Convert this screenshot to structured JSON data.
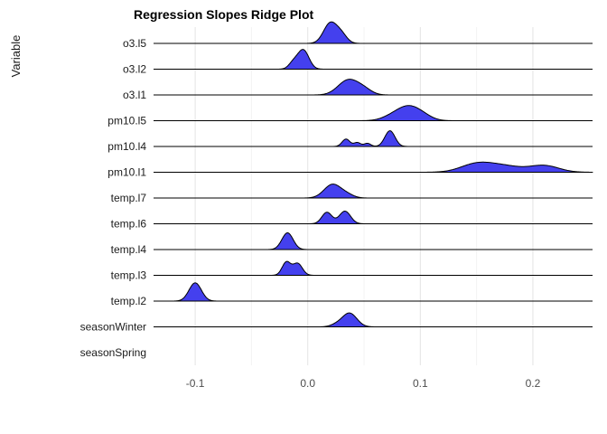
{
  "title": "Regression Slopes Ridge Plot",
  "y_axis_title": "Variable",
  "chart_data": {
    "type": "area",
    "subtype": "ridgeline-density",
    "title": "Regression Slopes Ridge Plot",
    "xlabel": "",
    "ylabel": "Variable",
    "xlim": [
      -0.137,
      0.253
    ],
    "x_ticks": [
      -0.1,
      0.0,
      0.1,
      0.2
    ],
    "x_tick_labels": [
      "-0.1",
      "0.0",
      "0.1",
      "0.2"
    ],
    "x_minor_ticks": [
      -0.05,
      0.05,
      0.15
    ],
    "grid": "vertical-only",
    "legend": "none",
    "fill_color": "#4440EE",
    "stroke_color": "#000000",
    "series": [
      {
        "name": "o3.l5",
        "has_baseline": true,
        "rel_height": 0.85,
        "components": [
          {
            "mean": 0.02,
            "sd": 0.006,
            "weight": 0.75
          },
          {
            "mean": 0.03,
            "sd": 0.005,
            "weight": 0.25
          }
        ]
      },
      {
        "name": "o3.l2",
        "has_baseline": true,
        "rel_height": 0.78,
        "components": [
          {
            "mean": -0.004,
            "sd": 0.005,
            "weight": 0.8
          },
          {
            "mean": -0.013,
            "sd": 0.004,
            "weight": 0.2
          }
        ]
      },
      {
        "name": "o3.l1",
        "has_baseline": true,
        "rel_height": 0.62,
        "components": [
          {
            "mean": 0.036,
            "sd": 0.009,
            "weight": 0.8
          },
          {
            "mean": 0.05,
            "sd": 0.007,
            "weight": 0.2
          }
        ]
      },
      {
        "name": "pm10.l5",
        "has_baseline": true,
        "rel_height": 0.6,
        "components": [
          {
            "mean": 0.088,
            "sd": 0.009,
            "weight": 0.5
          },
          {
            "mean": 0.075,
            "sd": 0.009,
            "weight": 0.2
          },
          {
            "mean": 0.1,
            "sd": 0.009,
            "weight": 0.3
          }
        ]
      },
      {
        "name": "pm10.l4",
        "has_baseline": true,
        "rel_height": 0.62,
        "components": [
          {
            "mean": 0.034,
            "sd": 0.0035,
            "weight": 0.22
          },
          {
            "mean": 0.044,
            "sd": 0.003,
            "weight": 0.1
          },
          {
            "mean": 0.053,
            "sd": 0.003,
            "weight": 0.08
          },
          {
            "mean": 0.073,
            "sd": 0.0045,
            "weight": 0.6
          }
        ]
      },
      {
        "name": "pm10.l1",
        "has_baseline": true,
        "rel_height": 0.4,
        "components": [
          {
            "mean": 0.15,
            "sd": 0.014,
            "weight": 0.4
          },
          {
            "mean": 0.175,
            "sd": 0.015,
            "weight": 0.3
          },
          {
            "mean": 0.21,
            "sd": 0.013,
            "weight": 0.3
          }
        ]
      },
      {
        "name": "temp.l7",
        "has_baseline": true,
        "rel_height": 0.55,
        "components": [
          {
            "mean": 0.022,
            "sd": 0.0075,
            "weight": 0.85
          },
          {
            "mean": 0.035,
            "sd": 0.006,
            "weight": 0.15
          }
        ]
      },
      {
        "name": "temp.l6",
        "has_baseline": true,
        "rel_height": 0.5,
        "components": [
          {
            "mean": 0.017,
            "sd": 0.0045,
            "weight": 0.45
          },
          {
            "mean": 0.033,
            "sd": 0.005,
            "weight": 0.55
          }
        ]
      },
      {
        "name": "temp.l4",
        "has_baseline": true,
        "rel_height": 0.66,
        "components": [
          {
            "mean": -0.018,
            "sd": 0.005,
            "weight": 1.0
          }
        ]
      },
      {
        "name": "temp.l3",
        "has_baseline": true,
        "rel_height": 0.55,
        "components": [
          {
            "mean": -0.019,
            "sd": 0.0038,
            "weight": 0.5
          },
          {
            "mean": -0.009,
            "sd": 0.0042,
            "weight": 0.5
          }
        ]
      },
      {
        "name": "temp.l2",
        "has_baseline": true,
        "rel_height": 0.72,
        "components": [
          {
            "mean": -0.1,
            "sd": 0.0055,
            "weight": 1.0
          }
        ]
      },
      {
        "name": "seasonWinter",
        "has_baseline": true,
        "rel_height": 0.55,
        "components": [
          {
            "mean": 0.037,
            "sd": 0.0065,
            "weight": 0.9
          },
          {
            "mean": 0.025,
            "sd": 0.005,
            "weight": 0.1
          }
        ]
      },
      {
        "name": "seasonSpring",
        "has_baseline": false,
        "rel_height": 0.0,
        "components": []
      }
    ]
  }
}
